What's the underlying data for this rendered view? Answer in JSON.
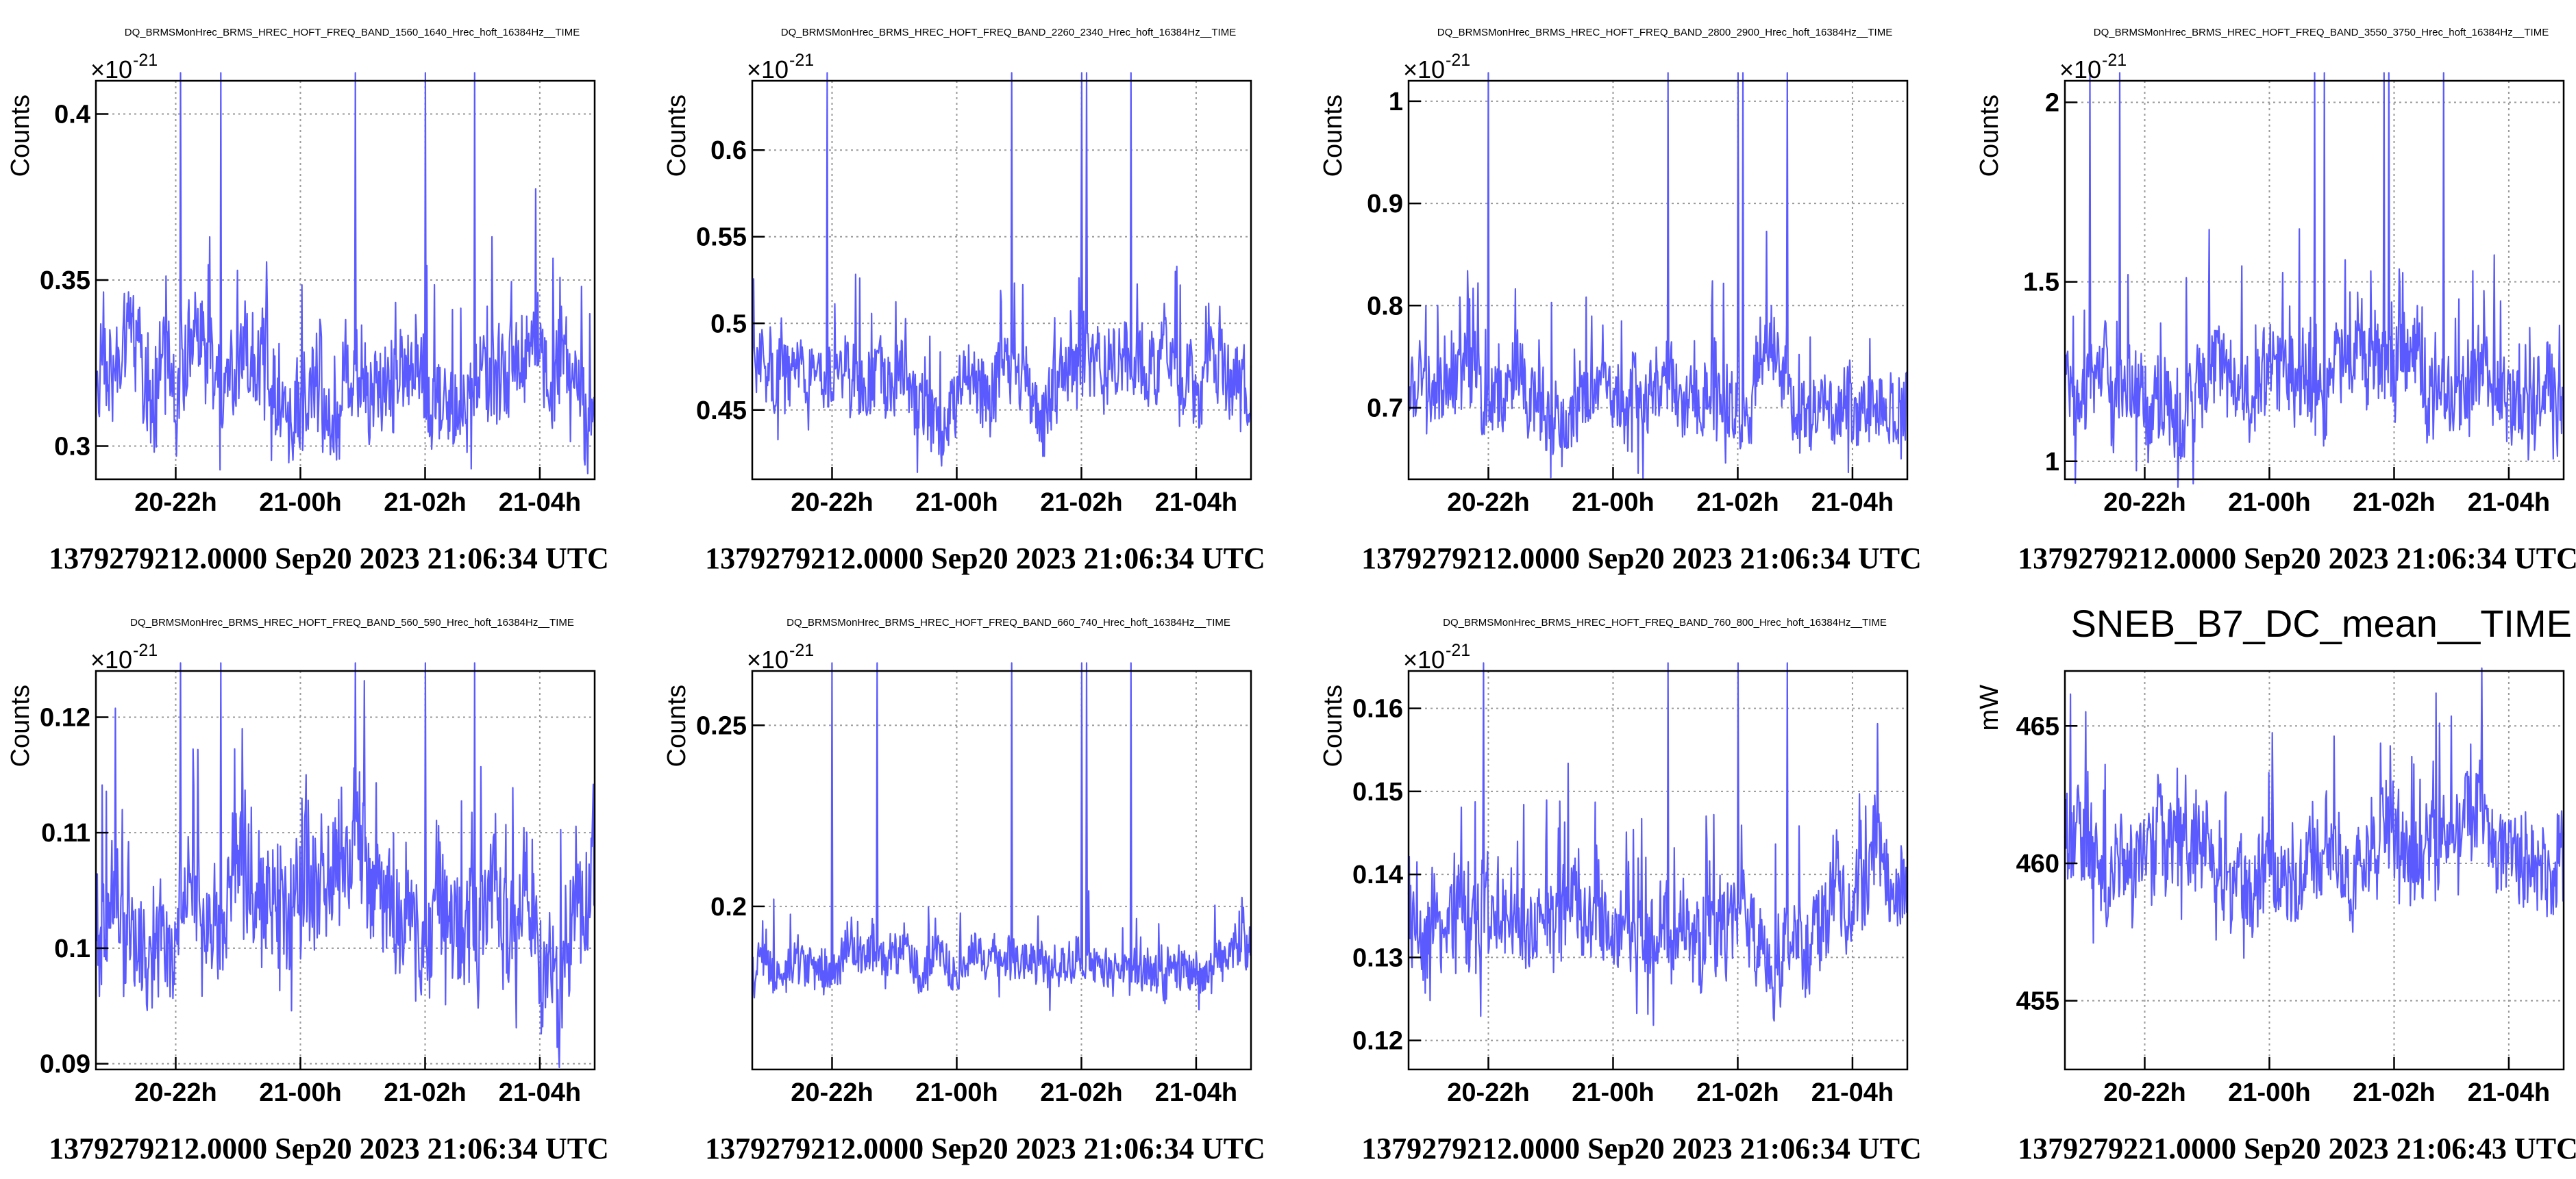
{
  "colors": {
    "series": "#5a5aff",
    "grid": "#9a9a9a",
    "axis": "#000000"
  },
  "chart_data": [
    {
      "type": "line",
      "title": "DQ_BRMSMonHrec_BRMS_HREC_HOFT_FREQ_BAND_1560_1640_Hrec_hoft_16384Hz__TIME",
      "ylabel": "Counts",
      "y_exponent": "×10",
      "y_exponent_power": "-21",
      "yticks": [
        0.3,
        0.35,
        0.4
      ],
      "ytick_labels": [
        "0.3",
        "0.35",
        "0.4"
      ],
      "ylim": [
        0.29,
        0.41
      ],
      "xticks": [
        "20-22h",
        "21-00h",
        "21-02h",
        "21-04h"
      ],
      "footer": "1379279212.0000 Sep20 2023 21:06:34 UTC",
      "baseline": 0.321,
      "noise": 0.012,
      "spikes": [
        0.17,
        0.25,
        0.52,
        0.66,
        0.76
      ]
    },
    {
      "type": "line",
      "title": "DQ_BRMSMonHrec_BRMS_HREC_HOFT_FREQ_BAND_2260_2340_Hrec_hoft_16384Hz__TIME",
      "ylabel": "Counts",
      "y_exponent": "×10",
      "y_exponent_power": "-21",
      "yticks": [
        0.45,
        0.5,
        0.55,
        0.6
      ],
      "ytick_labels": [
        "0.45",
        "0.5",
        "0.55",
        "0.6"
      ],
      "ylim": [
        0.41,
        0.64
      ],
      "xticks": [
        "20-22h",
        "21-00h",
        "21-02h",
        "21-04h"
      ],
      "footer": "1379279212.0000 Sep20 2023 21:06:34 UTC",
      "baseline": 0.465,
      "noise": 0.018,
      "spikes": [
        0.15,
        0.52,
        0.66,
        0.67,
        0.76
      ]
    },
    {
      "type": "line",
      "title": "DQ_BRMSMonHrec_BRMS_HREC_HOFT_FREQ_BAND_2800_2900_Hrec_hoft_16384Hz__TIME",
      "ylabel": "Counts",
      "y_exponent": "×10",
      "y_exponent_power": "-21",
      "yticks": [
        0.7,
        0.8,
        0.9,
        1
      ],
      "ytick_labels": [
        "0.7",
        "0.8",
        "0.9",
        "1"
      ],
      "ylim": [
        0.63,
        1.02
      ],
      "xticks": [
        "20-22h",
        "21-00h",
        "21-02h",
        "21-04h"
      ],
      "footer": "1379279212.0000 Sep20 2023 21:06:34 UTC",
      "baseline": 0.715,
      "noise": 0.03,
      "spikes": [
        0.16,
        0.52,
        0.66,
        0.67,
        0.76
      ]
    },
    {
      "type": "line",
      "title": "DQ_BRMSMonHrec_BRMS_HREC_HOFT_FREQ_BAND_3550_3750_Hrec_hoft_16384Hz__TIME",
      "ylabel": "Counts",
      "y_exponent": "×10",
      "y_exponent_power": "-21",
      "yticks": [
        1,
        1.5,
        2
      ],
      "ytick_labels": [
        "1",
        "1.5",
        "2"
      ],
      "ylim": [
        0.95,
        2.06
      ],
      "xticks": [
        "20-22h",
        "21-00h",
        "21-02h",
        "21-04h"
      ],
      "footer": "1379279212.0000 Sep20 2023 21:06:34 UTC",
      "baseline": 1.22,
      "noise": 0.1,
      "spikes": [
        0.05,
        0.11,
        0.5,
        0.52,
        0.64,
        0.65,
        0.76
      ]
    },
    {
      "type": "line",
      "title": "DQ_BRMSMonHrec_BRMS_HREC_HOFT_FREQ_BAND_560_590_Hrec_hoft_16384Hz__TIME",
      "ylabel": "Counts",
      "y_exponent": "×10",
      "y_exponent_power": "-21",
      "yticks": [
        0.09,
        0.1,
        0.11,
        0.12
      ],
      "ytick_labels": [
        "0.09",
        "0.1",
        "0.11",
        "0.12"
      ],
      "ylim": [
        0.0895,
        0.124
      ],
      "xticks": [
        "20-22h",
        "21-00h",
        "21-02h",
        "21-04h"
      ],
      "footer": "1379279212.0000 Sep20 2023 21:06:34 UTC",
      "baseline": 0.1035,
      "noise": 0.0045,
      "spikes": [
        0.17,
        0.25,
        0.52,
        0.66,
        0.76
      ]
    },
    {
      "type": "line",
      "title": "DQ_BRMSMonHrec_BRMS_HREC_HOFT_FREQ_BAND_660_740_Hrec_hoft_16384Hz__TIME",
      "ylabel": "Counts",
      "y_exponent": "×10",
      "y_exponent_power": "-21",
      "yticks": [
        0.2,
        0.25
      ],
      "ytick_labels": [
        "0.2",
        "0.25"
      ],
      "ylim": [
        0.155,
        0.265
      ],
      "xticks": [
        "20-22h",
        "21-00h",
        "21-02h",
        "21-04h"
      ],
      "footer": "1379279212.0000 Sep20 2023 21:06:34 UTC",
      "baseline": 0.184,
      "noise": 0.005,
      "spikes": [
        0.16,
        0.25,
        0.52,
        0.66,
        0.67,
        0.76
      ]
    },
    {
      "type": "line",
      "title": "DQ_BRMSMonHrec_BRMS_HREC_HOFT_FREQ_BAND_760_800_Hrec_hoft_16384Hz__TIME",
      "ylabel": "Counts",
      "y_exponent": "×10",
      "y_exponent_power": "-21",
      "yticks": [
        0.12,
        0.13,
        0.14,
        0.15,
        0.16
      ],
      "ytick_labels": [
        "0.12",
        "0.13",
        "0.14",
        "0.15",
        "0.16"
      ],
      "ylim": [
        0.1165,
        0.1645
      ],
      "xticks": [
        "20-22h",
        "21-00h",
        "21-02h",
        "21-04h"
      ],
      "footer": "1379279212.0000 Sep20 2023 21:06:34 UTC",
      "baseline": 0.133,
      "noise": 0.0045,
      "spikes": [
        0.15,
        0.52,
        0.66,
        0.76
      ]
    },
    {
      "type": "line",
      "title": "SNEB_B7_DC_mean__TIME",
      "title_style": "large",
      "ylabel": "mW",
      "y_exponent": "",
      "y_exponent_power": "",
      "yticks": [
        455,
        460,
        465
      ],
      "ytick_labels": [
        "455",
        "460",
        "465"
      ],
      "ylim": [
        452.5,
        467
      ],
      "xticks": [
        "20-22h",
        "21-00h",
        "21-02h",
        "21-04h"
      ],
      "footer": "1379279221.0000 Sep20 2023 21:06:43 UTC",
      "baseline": 460.3,
      "noise": 1.4,
      "spikes": []
    }
  ]
}
